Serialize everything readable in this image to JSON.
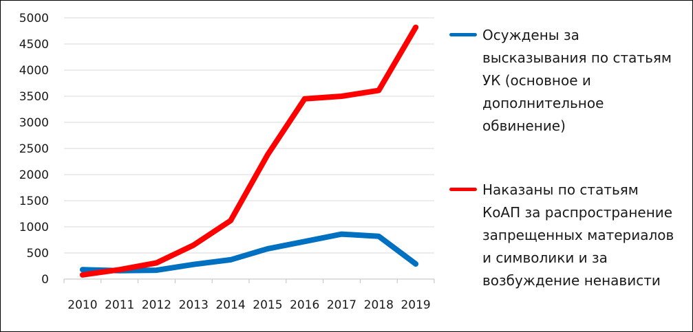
{
  "chart_data": {
    "type": "line",
    "x": [
      "2010",
      "2011",
      "2012",
      "2013",
      "2014",
      "2015",
      "2016",
      "2017",
      "2018",
      "2019"
    ],
    "ylim": [
      0,
      5000
    ],
    "yticks": [
      "0",
      "500",
      "1000",
      "1500",
      "2000",
      "2500",
      "3000",
      "3500",
      "4000",
      "4500",
      "5000"
    ],
    "grid": true,
    "legend_position": "right",
    "series": [
      {
        "name": "Осуждены за\nвысказывания по статьям\nУК (основное и\nдополнительное\nобвинение)",
        "color": "#0070c0",
        "values": [
          180,
          160,
          170,
          280,
          370,
          580,
          720,
          860,
          820,
          290
        ]
      },
      {
        "name": "Наказаны по статьям\nКоАП за распространение\nзапрещенных материалов\nи символики и за\nвозбуждение ненависти",
        "color": "#ff0000",
        "values": [
          80,
          180,
          310,
          650,
          1120,
          2380,
          3450,
          3500,
          3610,
          4820
        ]
      }
    ]
  }
}
